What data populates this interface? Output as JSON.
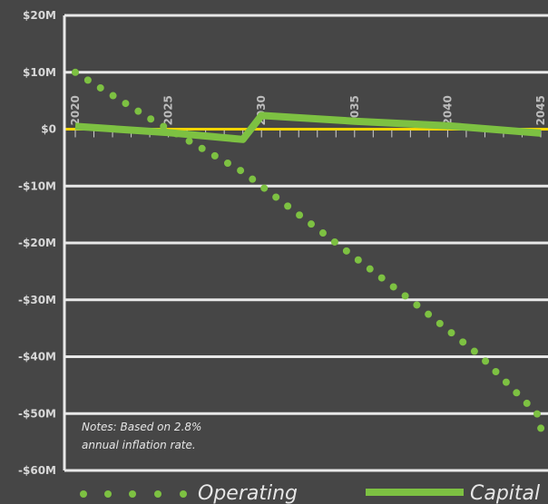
{
  "chart_data": {
    "type": "line",
    "title": "",
    "xlabel": "",
    "ylabel": "",
    "x": [
      2020,
      2025,
      2029,
      2030,
      2035,
      2040,
      2045
    ],
    "xlim": [
      2020,
      2045
    ],
    "ylim": [
      -60,
      20
    ],
    "y_unit": "$M",
    "yticks": [
      20,
      10,
      0,
      -10,
      -20,
      -30,
      -40,
      -50,
      -60
    ],
    "ytick_labels": [
      "$20M",
      "$10M",
      "$0",
      "-$10M",
      "-$20M",
      "-$30M",
      "-$40M",
      "-$50M",
      "-$60M"
    ],
    "xtick_labels": [
      "2020",
      "2025",
      "2030",
      "2035",
      "2040",
      "2045"
    ],
    "grid": true,
    "legend_position": "bottom",
    "series": [
      {
        "name": "Operating",
        "style": "dotted",
        "color": "#7dc142",
        "points": [
          [
            2020,
            10
          ],
          [
            2024.2,
            1.5
          ],
          [
            2029,
            -7.5
          ],
          [
            2034,
            -20
          ],
          [
            2038,
            -30
          ],
          [
            2041.8,
            -40
          ],
          [
            2044.8,
            -50
          ],
          [
            2045.2,
            -55
          ]
        ]
      },
      {
        "name": "Capital",
        "style": "solid",
        "color": "#7dc142",
        "points": [
          [
            2020,
            0.5
          ],
          [
            2025,
            -0.6
          ],
          [
            2029,
            -1.8
          ],
          [
            2030,
            2.4
          ],
          [
            2035,
            1.4
          ],
          [
            2040,
            0.6
          ],
          [
            2045,
            -0.7
          ]
        ]
      }
    ],
    "zero_line_color": "#f2d500",
    "gridline_color": "#e8e8e8",
    "note": "Notes:  Based on 2.8%\nannual inflation rate."
  },
  "notes": {
    "line1": "Notes:  Based on 2.8%",
    "line2": "annual inflation rate."
  },
  "legend": {
    "operating_label": "Operating",
    "capital_label": "Capital"
  }
}
